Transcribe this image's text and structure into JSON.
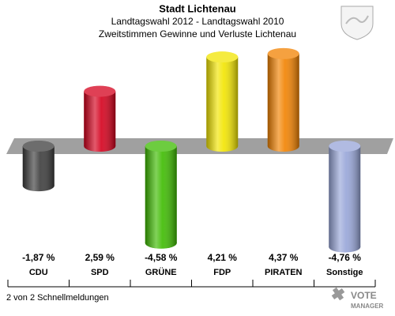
{
  "chart_data": {
    "type": "bar",
    "title": "Stadt Lichtenau",
    "subtitle": [
      "Landtagswahl 2012 - Landtagswahl 2010",
      "Zweitstimmen Gewinne und Verluste Lichtenau"
    ],
    "categories": [
      "CDU",
      "SPD",
      "GRÜNE",
      "FDP",
      "PIRATEN",
      "Sonstige"
    ],
    "values": [
      -1.87,
      2.59,
      -4.58,
      4.21,
      4.37,
      -4.76
    ],
    "value_labels": [
      "-1,87 %",
      "2,59 %",
      "-4,58 %",
      "4,21 %",
      "4,37 %",
      "-4,76 %"
    ],
    "colors": [
      "#3c3c3c",
      "#d4001c",
      "#3dbb00",
      "#f2e500",
      "#f28200",
      "#97a5d8"
    ],
    "footer": "2 von 2 Schnellmeldungen",
    "logo": [
      "VOTE",
      "MANAGER"
    ]
  }
}
